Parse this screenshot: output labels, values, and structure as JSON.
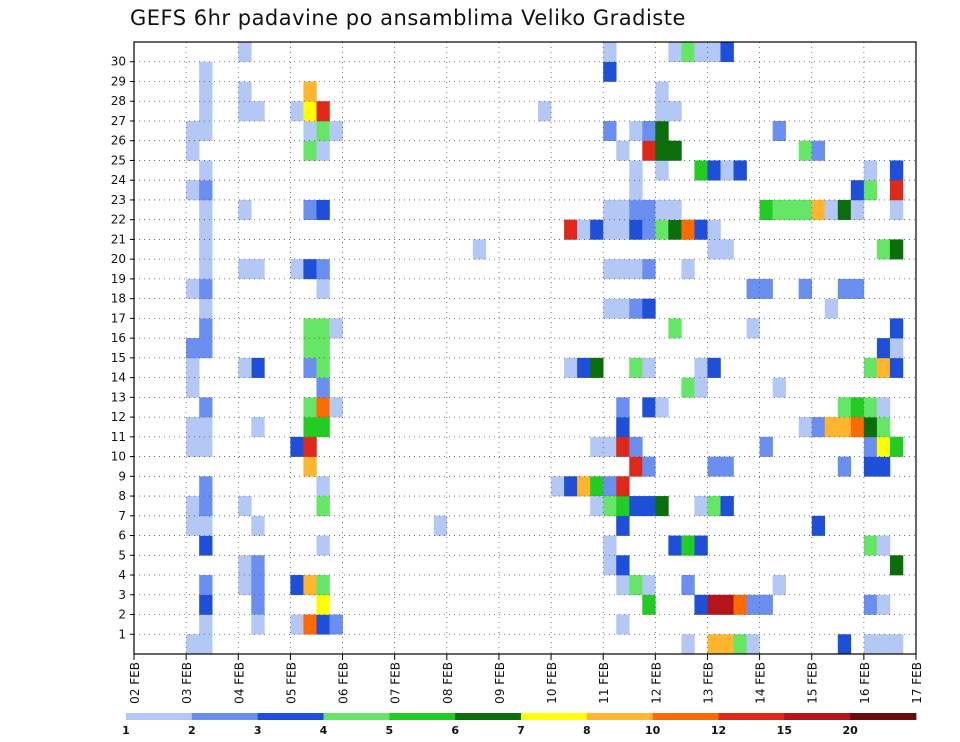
{
  "chart_data": {
    "type": "heatmap",
    "title": "GEFS 6hr padavine po ansamblima Veliko Gradiste",
    "xlabel": "",
    "ylabel": "",
    "x_ticks": [
      "02 FEB",
      "03 FEB",
      "04 FEB",
      "05 FEB",
      "06 FEB",
      "07 FEB",
      "08 FEB",
      "09 FEB",
      "10 FEB",
      "11 FEB",
      "12 FEB",
      "13 FEB",
      "14 FEB",
      "15 FEB",
      "16 FEB",
      "17 FEB"
    ],
    "x_start": "02 FEB",
    "time_step_hours": 6,
    "members": [
      1,
      2,
      3,
      4,
      5,
      6,
      7,
      8,
      9,
      10,
      11,
      12,
      13,
      14,
      15,
      16,
      17,
      18,
      19,
      20,
      21,
      22,
      23,
      24,
      25,
      26,
      27,
      28,
      29,
      30
    ],
    "grid": true,
    "color_levels": [
      1,
      2,
      3,
      4,
      5,
      6,
      7,
      8,
      10,
      12,
      15,
      20
    ],
    "colors": [
      "#b3c8f5",
      "#6b8ff0",
      "#1e4fd8",
      "#66e666",
      "#22cc22",
      "#0a6e0a",
      "#ffff00",
      "#ffb62e",
      "#ff6a00",
      "#e0281a",
      "#b4141a",
      "#6a0a0a"
    ],
    "colorbar_labels": [
      "1",
      "2",
      "3",
      "4",
      "5",
      "6",
      "7",
      "8",
      "10",
      "12",
      "15",
      "20"
    ],
    "cells": [
      [
        "03 FEB 00",
        "0",
        1
      ],
      [
        "03 FEB 06",
        "0",
        1
      ],
      [
        "03 FEB 06",
        "1",
        1
      ],
      [
        "03 FEB 06",
        "2",
        3
      ],
      [
        "03 FEB 06",
        "3",
        2
      ],
      [
        "03 FEB 06",
        "5",
        3
      ],
      [
        "03 FEB 00",
        "6",
        1
      ],
      [
        "03 FEB 06",
        "6",
        1
      ],
      [
        "03 FEB 00",
        "7",
        1
      ],
      [
        "03 FEB 06",
        "7",
        2
      ],
      [
        "03 FEB 06",
        "8",
        2
      ],
      [
        "03 FEB 00",
        "10",
        1
      ],
      [
        "03 FEB 06",
        "10",
        1
      ],
      [
        "03 FEB 00",
        "11",
        1
      ],
      [
        "03 FEB 06",
        "11",
        1
      ],
      [
        "03 FEB 06",
        "12",
        2
      ],
      [
        "03 FEB 00",
        "13",
        1
      ],
      [
        "03 FEB 00",
        "14",
        1
      ],
      [
        "03 FEB 00",
        "15",
        1
      ],
      [
        "03 FEB 06",
        "15",
        1
      ],
      [
        "03 FEB 00",
        "15",
        2
      ],
      [
        "03 FEB 06",
        "15",
        2
      ],
      [
        "03 FEB 06",
        "16",
        2
      ],
      [
        "03 FEB 06",
        "17",
        1
      ],
      [
        "03 FEB 00",
        "18",
        1
      ],
      [
        "03 FEB 06",
        "18",
        2
      ],
      [
        "03 FEB 06",
        "19",
        1
      ],
      [
        "03 FEB 06",
        "20",
        1
      ],
      [
        "03 FEB 06",
        "21",
        1
      ],
      [
        "03 FEB 06",
        "22",
        1
      ],
      [
        "03 FEB 00",
        "23",
        1
      ],
      [
        "03 FEB 06",
        "23",
        2
      ],
      [
        "03 FEB 06",
        "24",
        1
      ],
      [
        "03 FEB 00",
        "25",
        1
      ],
      [
        "03 FEB 00",
        "26",
        1
      ],
      [
        "03 FEB 06",
        "26",
        1
      ],
      [
        "03 FEB 06",
        "27",
        1
      ],
      [
        "03 FEB 06",
        "28",
        1
      ],
      [
        "03 FEB 06",
        "29",
        1
      ],
      [
        "04 FEB 00",
        "4",
        1
      ],
      [
        "04 FEB 00",
        "3",
        1
      ],
      [
        "04 FEB 06",
        "4",
        2
      ],
      [
        "04 FEB 06",
        "3",
        2
      ],
      [
        "04 FEB 06",
        "2",
        2
      ],
      [
        "04 FEB 06",
        "1",
        1
      ],
      [
        "04 FEB 06",
        "14",
        3
      ],
      [
        "04 FEB 00",
        "14",
        1
      ],
      [
        "04 FEB 00",
        "19",
        1
      ],
      [
        "04 FEB 00",
        "22",
        1
      ],
      [
        "04 FEB 00",
        "27",
        1
      ],
      [
        "04 FEB 00",
        "28",
        1
      ],
      [
        "04 FEB 00",
        "30",
        1
      ],
      [
        "04 FEB 06",
        "27",
        1
      ],
      [
        "04 FEB 06",
        "11",
        1
      ],
      [
        "04 FEB 06",
        "6",
        1
      ],
      [
        "04 FEB 00",
        "7",
        1
      ],
      [
        "04 FEB 06",
        "19",
        1
      ],
      [
        "05 FEB 00",
        "1",
        1
      ],
      [
        "05 FEB 00",
        "3",
        3
      ],
      [
        "05 FEB 00",
        "10",
        3
      ],
      [
        "05 FEB 00",
        "19",
        1
      ],
      [
        "05 FEB 00",
        "27",
        1
      ],
      [
        "05 FEB 06",
        "1",
        9
      ],
      [
        "05 FEB 06",
        "3",
        8
      ],
      [
        "05 FEB 06",
        "9",
        8
      ],
      [
        "05 FEB 06",
        "10",
        10
      ],
      [
        "05 FEB 06",
        "11",
        5
      ],
      [
        "05 FEB 06",
        "12",
        4
      ],
      [
        "05 FEB 06",
        "14",
        2
      ],
      [
        "05 FEB 06",
        "15",
        4
      ],
      [
        "05 FEB 06",
        "16",
        4
      ],
      [
        "05 FEB 06",
        "19",
        3
      ],
      [
        "05 FEB 06",
        "22",
        2
      ],
      [
        "05 FEB 06",
        "25",
        4
      ],
      [
        "05 FEB 06",
        "26",
        1
      ],
      [
        "05 FEB 06",
        "27",
        7
      ],
      [
        "05 FEB 06",
        "28",
        8
      ],
      [
        "05 FEB 12",
        "1",
        3
      ],
      [
        "05 FEB 12",
        "2",
        7
      ],
      [
        "05 FEB 12",
        "3",
        4
      ],
      [
        "05 FEB 12",
        "5",
        1
      ],
      [
        "05 FEB 12",
        "7",
        4
      ],
      [
        "05 FEB 12",
        "8",
        1
      ],
      [
        "05 FEB 12",
        "11",
        5
      ],
      [
        "05 FEB 12",
        "12",
        9
      ],
      [
        "05 FEB 12",
        "13",
        2
      ],
      [
        "05 FEB 12",
        "14",
        4
      ],
      [
        "05 FEB 12",
        "15",
        4
      ],
      [
        "05 FEB 12",
        "16",
        4
      ],
      [
        "05 FEB 12",
        "18",
        1
      ],
      [
        "05 FEB 12",
        "19",
        2
      ],
      [
        "05 FEB 12",
        "22",
        3
      ],
      [
        "05 FEB 12",
        "25",
        1
      ],
      [
        "05 FEB 12",
        "26",
        4
      ],
      [
        "05 FEB 12",
        "27",
        10
      ],
      [
        "05 FEB 18",
        "1",
        2
      ],
      [
        "05 FEB 18",
        "12",
        1
      ],
      [
        "05 FEB 18",
        "16",
        1
      ],
      [
        "05 FEB 18",
        "26",
        1
      ],
      [
        "07 FEB 18",
        "6",
        1
      ],
      [
        "08 FEB 12",
        "20",
        1
      ],
      [
        "09 FEB 18",
        "27",
        1
      ],
      [
        "10 FEB 00",
        "8",
        1
      ],
      [
        "10 FEB 06",
        "8",
        3
      ],
      [
        "10 FEB 12",
        "8",
        8
      ],
      [
        "10 FEB 18",
        "8",
        5
      ],
      [
        "10 FEB 06",
        "14",
        1
      ],
      [
        "10 FEB 12",
        "14",
        3
      ],
      [
        "10 FEB 18",
        "14",
        6
      ],
      [
        "10 FEB 06",
        "21",
        10
      ],
      [
        "10 FEB 12",
        "21",
        1
      ],
      [
        "10 FEB 18",
        "21",
        3
      ],
      [
        "10 FEB 18",
        "7",
        1
      ],
      [
        "10 FEB 18",
        "10",
        1
      ],
      [
        "11 FEB 00",
        "8",
        2
      ],
      [
        "11 FEB 00",
        "7",
        4
      ],
      [
        "11 FEB 00",
        "10",
        1
      ],
      [
        "11 FEB 00",
        "5",
        1
      ],
      [
        "11 FEB 00",
        "17",
        1
      ],
      [
        "11 FEB 00",
        "19",
        1
      ],
      [
        "11 FEB 00",
        "21",
        1
      ],
      [
        "11 FEB 00",
        "22",
        1
      ],
      [
        "11 FEB 00",
        "26",
        2
      ],
      [
        "11 FEB 00",
        "29",
        3
      ],
      [
        "11 FEB 00",
        "30",
        1
      ],
      [
        "11 FEB 00",
        "4",
        1
      ],
      [
        "11 FEB 06",
        "1",
        1
      ],
      [
        "11 FEB 06",
        "3",
        1
      ],
      [
        "11 FEB 06",
        "4",
        3
      ],
      [
        "11 FEB 06",
        "6",
        3
      ],
      [
        "11 FEB 06",
        "7",
        5
      ],
      [
        "11 FEB 06",
        "8",
        10
      ],
      [
        "11 FEB 06",
        "10",
        10
      ],
      [
        "11 FEB 06",
        "11",
        3
      ],
      [
        "11 FEB 06",
        "12",
        2
      ],
      [
        "11 FEB 06",
        "17",
        1
      ],
      [
        "11 FEB 06",
        "19",
        1
      ],
      [
        "11 FEB 06",
        "21",
        1
      ],
      [
        "11 FEB 06",
        "22",
        1
      ],
      [
        "11 FEB 06",
        "25",
        1
      ],
      [
        "11 FEB 12",
        "3",
        4
      ],
      [
        "11 FEB 12",
        "7",
        3
      ],
      [
        "11 FEB 12",
        "9",
        10
      ],
      [
        "11 FEB 12",
        "10",
        2
      ],
      [
        "11 FEB 12",
        "14",
        4
      ],
      [
        "11 FEB 12",
        "17",
        2
      ],
      [
        "11 FEB 12",
        "19",
        1
      ],
      [
        "11 FEB 12",
        "21",
        3
      ],
      [
        "11 FEB 12",
        "22",
        2
      ],
      [
        "11 FEB 12",
        "23",
        1
      ],
      [
        "11 FEB 12",
        "24",
        1
      ],
      [
        "11 FEB 12",
        "26",
        1
      ],
      [
        "11 FEB 18",
        "2",
        5
      ],
      [
        "11 FEB 18",
        "3",
        1
      ],
      [
        "11 FEB 18",
        "7",
        3
      ],
      [
        "11 FEB 18",
        "9",
        2
      ],
      [
        "11 FEB 18",
        "12",
        3
      ],
      [
        "11 FEB 18",
        "14",
        1
      ],
      [
        "11 FEB 18",
        "17",
        3
      ],
      [
        "11 FEB 18",
        "19",
        2
      ],
      [
        "11 FEB 18",
        "21",
        2
      ],
      [
        "11 FEB 18",
        "22",
        2
      ],
      [
        "11 FEB 18",
        "25",
        10
      ],
      [
        "11 FEB 18",
        "26",
        2
      ],
      [
        "12 FEB 00",
        "7",
        6
      ],
      [
        "12 FEB 00",
        "12",
        1
      ],
      [
        "12 FEB 00",
        "21",
        4
      ],
      [
        "12 FEB 00",
        "22",
        1
      ],
      [
        "12 FEB 00",
        "24",
        1
      ],
      [
        "12 FEB 00",
        "25",
        6
      ],
      [
        "12 FEB 00",
        "26",
        6
      ],
      [
        "12 FEB 00",
        "27",
        1
      ],
      [
        "12 FEB 00",
        "28",
        1
      ],
      [
        "12 FEB 06",
        "5",
        3
      ],
      [
        "12 FEB 06",
        "16",
        4
      ],
      [
        "12 FEB 06",
        "21",
        6
      ],
      [
        "12 FEB 06",
        "22",
        1
      ],
      [
        "12 FEB 06",
        "25",
        6
      ],
      [
        "12 FEB 06",
        "27",
        1
      ],
      [
        "12 FEB 06",
        "30",
        1
      ],
      [
        "12 FEB 12",
        "0",
        1
      ],
      [
        "12 FEB 12",
        "3",
        2
      ],
      [
        "12 FEB 12",
        "5",
        5
      ],
      [
        "12 FEB 12",
        "13",
        4
      ],
      [
        "12 FEB 12",
        "19",
        1
      ],
      [
        "12 FEB 12",
        "21",
        9
      ],
      [
        "12 FEB 12",
        "30",
        4
      ],
      [
        "12 FEB 18",
        "2",
        3
      ],
      [
        "12 FEB 18",
        "5",
        3
      ],
      [
        "12 FEB 18",
        "7",
        1
      ],
      [
        "12 FEB 18",
        "13",
        1
      ],
      [
        "12 FEB 18",
        "14",
        1
      ],
      [
        "12 FEB 18",
        "21",
        3
      ],
      [
        "12 FEB 18",
        "24",
        5
      ],
      [
        "12 FEB 18",
        "30",
        1
      ],
      [
        "13 FEB 00",
        "0",
        8
      ],
      [
        "13 FEB 00",
        "2",
        11
      ],
      [
        "13 FEB 00",
        "7",
        4
      ],
      [
        "13 FEB 00",
        "9",
        2
      ],
      [
        "13 FEB 00",
        "14",
        3
      ],
      [
        "13 FEB 00",
        "20",
        1
      ],
      [
        "13 FEB 00",
        "21",
        1
      ],
      [
        "13 FEB 00",
        "24",
        3
      ],
      [
        "13 FEB 00",
        "30",
        1
      ],
      [
        "13 FEB 06",
        "0",
        8
      ],
      [
        "13 FEB 06",
        "2",
        11
      ],
      [
        "13 FEB 06",
        "7",
        3
      ],
      [
        "13 FEB 06",
        "9",
        2
      ],
      [
        "13 FEB 06",
        "20",
        1
      ],
      [
        "13 FEB 06",
        "24",
        1
      ],
      [
        "13 FEB 06",
        "30",
        3
      ],
      [
        "13 FEB 12",
        "0",
        4
      ],
      [
        "13 FEB 12",
        "2",
        9
      ],
      [
        "13 FEB 12",
        "24",
        3
      ],
      [
        "13 FEB 18",
        "0",
        1
      ],
      [
        "13 FEB 18",
        "2",
        2
      ],
      [
        "13 FEB 18",
        "16",
        1
      ],
      [
        "13 FEB 18",
        "18",
        2
      ],
      [
        "14 FEB 00",
        "2",
        2
      ],
      [
        "14 FEB 00",
        "10",
        2
      ],
      [
        "14 FEB 00",
        "18",
        2
      ],
      [
        "14 FEB 00",
        "22",
        5
      ],
      [
        "14 FEB 06",
        "3",
        1
      ],
      [
        "14 FEB 06",
        "13",
        1
      ],
      [
        "14 FEB 06",
        "22",
        4
      ],
      [
        "14 FEB 06",
        "26",
        2
      ],
      [
        "14 FEB 12",
        "22",
        4
      ],
      [
        "14 FEB 18",
        "22",
        4
      ],
      [
        "14 FEB 18",
        "18",
        2
      ],
      [
        "14 FEB 18",
        "11",
        1
      ],
      [
        "14 FEB 18",
        "25",
        4
      ],
      [
        "15 FEB 00",
        "6",
        3
      ],
      [
        "15 FEB 00",
        "11",
        2
      ],
      [
        "15 FEB 00",
        "22",
        8
      ],
      [
        "15 FEB 00",
        "25",
        2
      ],
      [
        "15 FEB 06",
        "11",
        8
      ],
      [
        "15 FEB 06",
        "17",
        1
      ],
      [
        "15 FEB 06",
        "22",
        1
      ],
      [
        "15 FEB 12",
        "0",
        3
      ],
      [
        "15 FEB 12",
        "9",
        2
      ],
      [
        "15 FEB 12",
        "11",
        8
      ],
      [
        "15 FEB 12",
        "12",
        4
      ],
      [
        "15 FEB 12",
        "18",
        2
      ],
      [
        "15 FEB 12",
        "22",
        6
      ],
      [
        "15 FEB 18",
        "11",
        9
      ],
      [
        "15 FEB 18",
        "12",
        5
      ],
      [
        "15 FEB 18",
        "18",
        2
      ],
      [
        "15 FEB 18",
        "22",
        1
      ],
      [
        "15 FEB 18",
        "23",
        3
      ],
      [
        "16 FEB 00",
        "2",
        2
      ],
      [
        "16 FEB 00",
        "5",
        4
      ],
      [
        "16 FEB 00",
        "9",
        3
      ],
      [
        "16 FEB 00",
        "10",
        2
      ],
      [
        "16 FEB 00",
        "11",
        6
      ],
      [
        "16 FEB 00",
        "12",
        4
      ],
      [
        "16 FEB 00",
        "14",
        4
      ],
      [
        "16 FEB 00",
        "23",
        4
      ],
      [
        "16 FEB 00",
        "24",
        1
      ],
      [
        "16 FEB 00",
        "0",
        1
      ],
      [
        "16 FEB 06",
        "0",
        1
      ],
      [
        "16 FEB 06",
        "2",
        1
      ],
      [
        "16 FEB 06",
        "5",
        1
      ],
      [
        "16 FEB 06",
        "9",
        3
      ],
      [
        "16 FEB 06",
        "10",
        7
      ],
      [
        "16 FEB 06",
        "11",
        4
      ],
      [
        "16 FEB 06",
        "12",
        1
      ],
      [
        "16 FEB 06",
        "14",
        8
      ],
      [
        "16 FEB 06",
        "15",
        3
      ],
      [
        "16 FEB 06",
        "20",
        4
      ],
      [
        "16 FEB 12",
        "0",
        1
      ],
      [
        "16 FEB 12",
        "4",
        6
      ],
      [
        "16 FEB 12",
        "10",
        5
      ],
      [
        "16 FEB 12",
        "14",
        3
      ],
      [
        "16 FEB 12",
        "15",
        1
      ],
      [
        "16 FEB 12",
        "16",
        3
      ],
      [
        "16 FEB 12",
        "20",
        6
      ],
      [
        "16 FEB 12",
        "22",
        1
      ],
      [
        "16 FEB 12",
        "23",
        10
      ],
      [
        "16 FEB 12",
        "24",
        3
      ]
    ]
  }
}
